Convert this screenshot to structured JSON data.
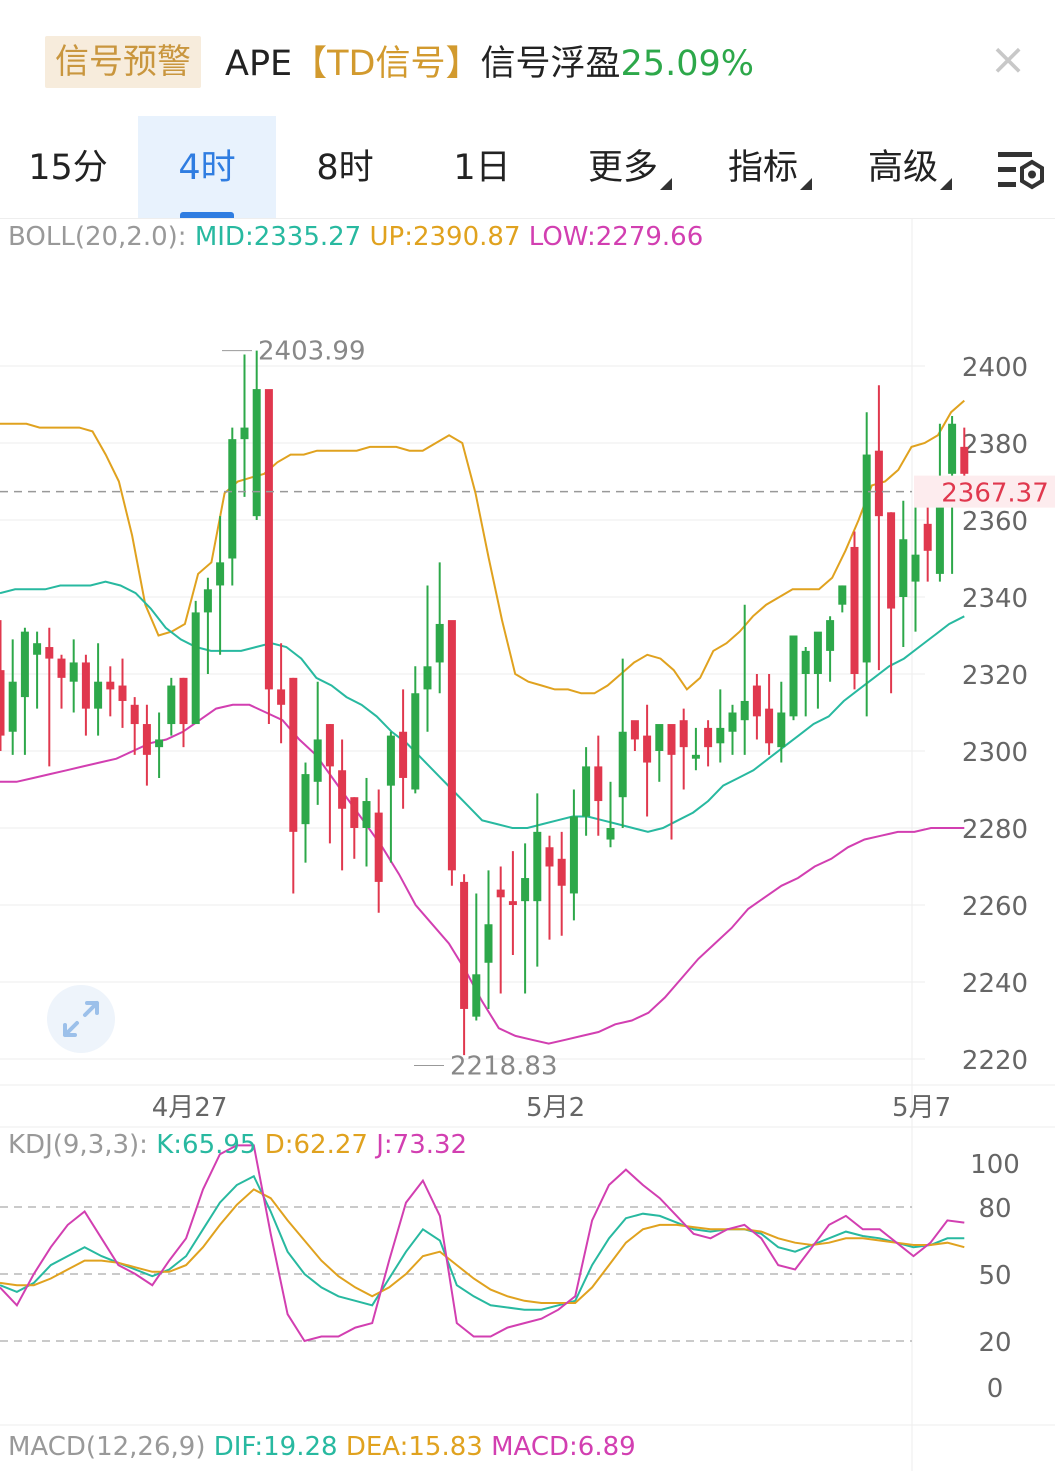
{
  "header": {
    "badge": "信号预警",
    "symbol": "APE",
    "signal_tag": "【TD信号】",
    "signal_text": "信号浮盈",
    "signal_value": "25.09%",
    "close_icon": "close-icon"
  },
  "tabs": [
    {
      "label": "15分",
      "active": false
    },
    {
      "label": "4时",
      "active": true
    },
    {
      "label": "8时",
      "active": false
    },
    {
      "label": "1日",
      "active": false
    },
    {
      "label": "更多",
      "active": false,
      "dropdown": true
    },
    {
      "label": "指标",
      "active": false,
      "dropdown": true
    },
    {
      "label": "高级",
      "active": false,
      "dropdown": true
    }
  ],
  "settings_icon": "chart-settings-icon",
  "boll_legend": {
    "name": "BOLL(20,2.0):",
    "mid": "MID:2335.27",
    "up": "UP:2390.87",
    "low": "LOW:2279.66"
  },
  "kdj_legend": {
    "name": "KDJ(9,3,3):",
    "k": "K:65.95",
    "d": "D:62.27",
    "j": "J:73.32"
  },
  "macd_legend": {
    "name": "MACD(12,26,9)",
    "dif": "DIF:19.28",
    "dea": "DEA:15.83",
    "macd": "MACD:6.89"
  },
  "colors": {
    "up_candle": "#2da84a",
    "down_candle": "#e0384e",
    "mid": "#28b9a0",
    "up": "#e0a21f",
    "low": "#d23fb1",
    "grid": "#eeeeee",
    "axis_text": "#666666",
    "current_price": "#e0384e"
  },
  "chart_data": [
    {
      "type": "candlestick",
      "title": "",
      "y_ticks": [
        2400,
        2380,
        2360,
        2340,
        2320,
        2300,
        2280,
        2260,
        2240,
        2220
      ],
      "ylim": [
        2213,
        2414
      ],
      "current_price": 2367.37,
      "current_price_label": "2367.37",
      "high_marker": {
        "value": 2403.99,
        "label": "2403.99"
      },
      "low_marker": {
        "value": 2218.83,
        "label": "2218.83"
      },
      "x_labels": [
        {
          "label": "4月27",
          "index": 15.5
        },
        {
          "label": "5月2",
          "index": 45.5
        },
        {
          "label": "5月7",
          "index": 75.5
        }
      ],
      "candles": [
        [
          2321,
          2304,
          2334,
          2300
        ],
        [
          2305,
          2318,
          2329,
          2299
        ],
        [
          2314,
          2331,
          2332,
          2299
        ],
        [
          2325,
          2328,
          2331,
          2311
        ],
        [
          2327,
          2324,
          2332,
          2296
        ],
        [
          2324,
          2319,
          2325,
          2311
        ],
        [
          2318,
          2323,
          2329,
          2310
        ],
        [
          2323,
          2311,
          2325,
          2304
        ],
        [
          2311,
          2318,
          2328,
          2304
        ],
        [
          2318,
          2316,
          2322,
          2309
        ],
        [
          2317,
          2313,
          2324,
          2306
        ],
        [
          2312,
          2307,
          2314,
          2299
        ],
        [
          2307,
          2299,
          2312,
          2291
        ],
        [
          2301,
          2303,
          2310,
          2293
        ],
        [
          2307,
          2317,
          2319,
          2304
        ],
        [
          2319,
          2307,
          2319,
          2301
        ],
        [
          2307,
          2336,
          2339,
          2307
        ],
        [
          2336,
          2342,
          2345,
          2320
        ],
        [
          2343,
          2349,
          2361,
          2325
        ],
        [
          2350,
          2381,
          2384,
          2343
        ],
        [
          2381,
          2384,
          2403,
          2366
        ],
        [
          2361,
          2394,
          2404,
          2360
        ],
        [
          2394,
          2316,
          2393,
          2307
        ],
        [
          2316,
          2312,
          2328,
          2302
        ],
        [
          2319,
          2279,
          2319,
          2263
        ],
        [
          2281,
          2294,
          2297,
          2271
        ],
        [
          2292,
          2303,
          2318,
          2286
        ],
        [
          2307,
          2296,
          2307,
          2276
        ],
        [
          2295,
          2285,
          2303,
          2269
        ],
        [
          2288,
          2280,
          2288,
          2272
        ],
        [
          2280,
          2287,
          2293,
          2270
        ],
        [
          2284,
          2266,
          2290,
          2258
        ],
        [
          2291,
          2304,
          2305,
          2271
        ],
        [
          2305,
          2293,
          2316,
          2285
        ],
        [
          2290,
          2315,
          2322,
          2289
        ],
        [
          2316,
          2322,
          2343,
          2305
        ],
        [
          2323,
          2333,
          2349,
          2315
        ],
        [
          2334,
          2269,
          2331,
          2265
        ],
        [
          2266,
          2233,
          2268,
          2221
        ],
        [
          2231,
          2242,
          2263,
          2230
        ],
        [
          2245,
          2255,
          2269,
          2233
        ],
        [
          2264,
          2262,
          2270,
          2237
        ],
        [
          2261,
          2260,
          2274,
          2247
        ],
        [
          2261,
          2267,
          2276,
          2237
        ],
        [
          2261,
          2279,
          2289,
          2244
        ],
        [
          2275,
          2270,
          2278,
          2251
        ],
        [
          2272,
          2265,
          2279,
          2252
        ],
        [
          2263,
          2283,
          2290,
          2256
        ],
        [
          2283,
          2296,
          2301,
          2278
        ],
        [
          2296,
          2287,
          2304,
          2278
        ],
        [
          2277,
          2280,
          2292,
          2275
        ],
        [
          2288,
          2305,
          2324,
          2280
        ],
        [
          2308,
          2303,
          2306,
          2300
        ],
        [
          2304,
          2297,
          2312,
          2283
        ],
        [
          2300,
          2307,
          2304,
          2292
        ],
        [
          2307,
          2299,
          2304,
          2277
        ],
        [
          2308,
          2301,
          2311,
          2290
        ],
        [
          2298,
          2299,
          2306,
          2295
        ],
        [
          2306,
          2301,
          2308,
          2296
        ],
        [
          2302,
          2306,
          2316,
          2297
        ],
        [
          2305,
          2310,
          2312,
          2299
        ],
        [
          2308,
          2313,
          2338,
          2299
        ],
        [
          2317,
          2309,
          2320,
          2303
        ],
        [
          2311,
          2302,
          2320,
          2299
        ],
        [
          2301,
          2310,
          2318,
          2297
        ],
        [
          2309,
          2330,
          2322,
          2308
        ],
        [
          2320,
          2326,
          2327,
          2309
        ],
        [
          2320,
          2331,
          2324,
          2311
        ],
        [
          2326,
          2334,
          2335,
          2318
        ],
        [
          2338,
          2343,
          2343,
          2336
        ],
        [
          2353,
          2320,
          2357,
          2316
        ],
        [
          2323,
          2377,
          2388,
          2309
        ],
        [
          2378,
          2361,
          2395,
          2321
        ],
        [
          2362,
          2337,
          2362,
          2315
        ],
        [
          2340,
          2355,
          2365,
          2327
        ],
        [
          2344,
          2351,
          2364,
          2331
        ],
        [
          2359,
          2352,
          2366,
          2344
        ],
        [
          2346,
          2371,
          2385,
          2344
        ],
        [
          2372,
          2385,
          2387,
          2346
        ],
        [
          2379,
          2372,
          2384,
          2367
        ]
      ],
      "boll": {
        "up": [
          2385,
          2385,
          2385,
          2384,
          2384,
          2384,
          2384,
          2383,
          2377,
          2370,
          2356,
          2338,
          2330,
          2331,
          2333,
          2346,
          2349,
          2367,
          2370,
          2371,
          2372,
          2375,
          2377,
          2377,
          2378,
          2378,
          2378,
          2378,
          2379,
          2379,
          2379,
          2378,
          2378,
          2380,
          2382,
          2380,
          2367,
          2350,
          2334,
          2320,
          2318,
          2317,
          2316,
          2316,
          2315,
          2315,
          2317,
          2320,
          2323,
          2325,
          2324,
          2321,
          2316,
          2319,
          2326,
          2328,
          2331,
          2335,
          2338,
          2340,
          2342,
          2342,
          2342,
          2345,
          2352,
          2360,
          2369,
          2370,
          2373,
          2379,
          2380,
          2382,
          2388,
          2391
        ],
        "mid": [
          2341,
          2342,
          2342,
          2342,
          2343,
          2343,
          2343,
          2344,
          2343,
          2341,
          2337,
          2332,
          2329,
          2327,
          2326,
          2326,
          2326,
          2327,
          2328,
          2327,
          2324,
          2319,
          2317,
          2314,
          2312,
          2309,
          2305,
          2302,
          2298,
          2294,
          2290,
          2286,
          2282,
          2281,
          2280,
          2280,
          2281,
          2282,
          2283,
          2283,
          2282,
          2281,
          2280,
          2279,
          2280,
          2282,
          2284,
          2287,
          2291,
          2293,
          2295,
          2298,
          2301,
          2304,
          2307,
          2309,
          2313,
          2316,
          2319,
          2322,
          2324,
          2327,
          2330,
          2333,
          2335
        ],
        "low": [
          2292,
          2292,
          2293,
          2294,
          2295,
          2296,
          2297,
          2298,
          2300,
          2302,
          2303,
          2305,
          2308,
          2311,
          2312,
          2312,
          2310,
          2308,
          2303,
          2299,
          2293,
          2287,
          2281,
          2275,
          2268,
          2260,
          2255,
          2250,
          2243,
          2235,
          2228,
          2226,
          2225,
          2224,
          2225,
          2226,
          2227,
          2229,
          2230,
          2232,
          2236,
          2241,
          2246,
          2250,
          2254,
          2259,
          2262,
          2265,
          2267,
          2270,
          2272,
          2275,
          2277,
          2278,
          2279,
          2279,
          2280,
          2280,
          2280
        ]
      }
    },
    {
      "type": "line",
      "title": "",
      "y_ticks": [
        100,
        80,
        50,
        20,
        0
      ],
      "dashed_levels": [
        80,
        50,
        20
      ],
      "ylim": [
        0,
        100
      ],
      "series": [
        {
          "name": "K",
          "values": [
            45,
            42,
            46,
            54,
            58,
            62,
            58,
            55,
            52,
            49,
            52,
            58,
            70,
            82,
            90,
            94,
            78,
            60,
            50,
            44,
            40,
            38,
            36,
            48,
            60,
            70,
            65,
            45,
            40,
            36,
            35,
            34,
            34,
            36,
            38,
            54,
            66,
            75,
            77,
            76,
            73,
            70,
            69,
            70,
            70,
            68,
            62,
            60,
            63,
            66,
            69,
            67,
            66,
            64,
            62,
            63,
            66,
            66
          ]
        },
        {
          "name": "D",
          "values": [
            46,
            45,
            45,
            48,
            52,
            56,
            56,
            55,
            53,
            51,
            51,
            54,
            62,
            72,
            81,
            88,
            84,
            74,
            65,
            56,
            49,
            44,
            40,
            44,
            50,
            58,
            60,
            54,
            48,
            43,
            40,
            38,
            37,
            37,
            37,
            44,
            54,
            64,
            70,
            72,
            72,
            71,
            70,
            70,
            70,
            69,
            66,
            64,
            63,
            64,
            66,
            66,
            65,
            64,
            63,
            63,
            64,
            62
          ]
        },
        {
          "name": "J",
          "values": [
            44,
            36,
            50,
            62,
            72,
            78,
            66,
            54,
            50,
            45,
            56,
            66,
            88,
            104,
            108,
            108,
            68,
            32,
            20,
            22,
            22,
            26,
            28,
            56,
            82,
            92,
            76,
            28,
            22,
            22,
            26,
            28,
            30,
            34,
            40,
            74,
            90,
            97,
            90,
            84,
            76,
            68,
            66,
            70,
            72,
            66,
            54,
            52,
            62,
            72,
            76,
            70,
            70,
            64,
            58,
            64,
            74,
            73
          ]
        }
      ]
    }
  ]
}
